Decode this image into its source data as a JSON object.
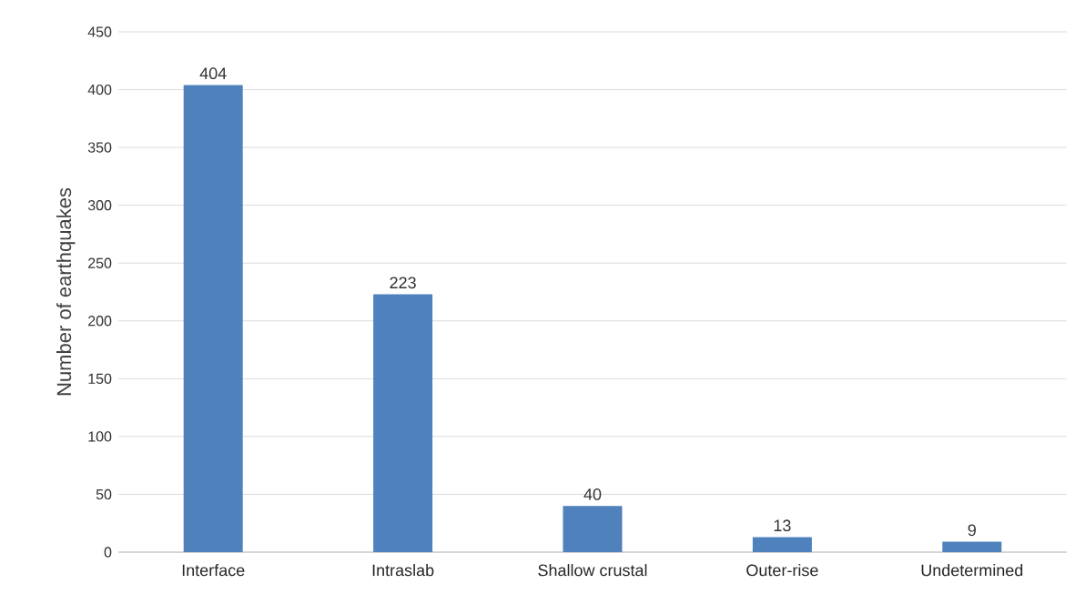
{
  "chart_data": {
    "type": "bar",
    "ylabel": "Number of earthquakes",
    "categories": [
      "Interface",
      "Intraslab",
      "Shallow crustal",
      "Outer-rise",
      "Undetermined"
    ],
    "values": [
      404,
      223,
      40,
      13,
      9
    ],
    "color": "#4f81bd",
    "ylim": [
      0,
      450
    ],
    "yticks": [
      0,
      50,
      100,
      150,
      200,
      250,
      300,
      350,
      400,
      450
    ],
    "grid": "y",
    "data_labels": true
  }
}
